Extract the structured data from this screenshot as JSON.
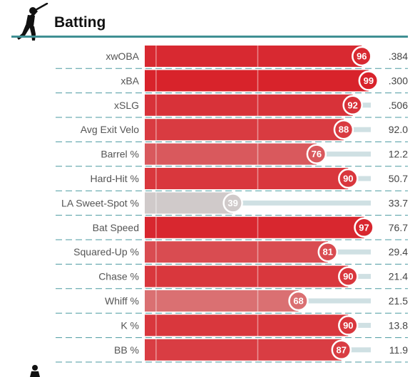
{
  "section": {
    "title": "Batting",
    "icon": "baseball-batter-icon",
    "accent_color": "#3f8f93"
  },
  "chart_data": {
    "type": "bar",
    "title": "Batting",
    "xlim": [
      0,
      100
    ],
    "categories": [
      "xwOBA",
      "xBA",
      "xSLG",
      "Avg Exit Velo",
      "Barrel %",
      "Hard-Hit %",
      "LA Sweet-Spot %",
      "Bat Speed",
      "Squared-Up %",
      "Chase %",
      "Whiff %",
      "K %",
      "BB %"
    ],
    "series": [
      {
        "values": [
          96,
          99,
          92,
          88,
          76,
          90,
          39,
          97,
          81,
          90,
          68,
          90,
          87
        ]
      }
    ],
    "stat_values": [
      ".384",
      ".300",
      ".506",
      "92.0",
      "12.2",
      "50.7",
      "33.7",
      "76.7",
      "29.4",
      "21.4",
      "21.5",
      "13.8",
      "11.9"
    ],
    "grid": true,
    "colors": {
      "track": "#cfe0e3",
      "low": "#a7bfd0",
      "high": "#d82129"
    }
  }
}
